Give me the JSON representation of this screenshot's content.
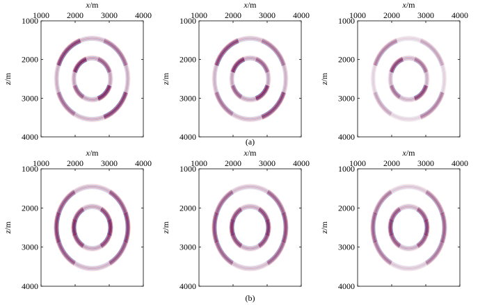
{
  "figure": {
    "row_labels": [
      "(a)",
      "(b)"
    ],
    "x_axis_label": {
      "italic": "x",
      "unit": "/m"
    },
    "z_axis_label": {
      "italic": "z",
      "unit": "/m"
    },
    "x_ticks": [
      "1000",
      "2000",
      "3000",
      "4000"
    ],
    "z_ticks": [
      "1000",
      "2000",
      "3000",
      "4000"
    ]
  },
  "chart_data": {
    "type": "heatmap",
    "description_units": "m",
    "xlim": [
      1000,
      4000
    ],
    "zlim": [
      1000,
      4000
    ],
    "source_center": [
      2500,
      2500
    ],
    "colors": {
      "positive": "#d0263a",
      "negative": "#2c3e9e",
      "zero": "#ffffff"
    },
    "panels": [
      {
        "row": "a",
        "col": 1,
        "outer_radius": 1050,
        "inner_radius": 540,
        "inner_peak": "upper-left/lower-right",
        "inner_strength": 1.0,
        "outer_strength": 0.85
      },
      {
        "row": "a",
        "col": 2,
        "outer_radius": 1050,
        "inner_radius": 540,
        "inner_peak": "upper-left/lower-right",
        "inner_strength": 0.95,
        "outer_strength": 0.8
      },
      {
        "row": "a",
        "col": 3,
        "outer_radius": 1050,
        "inner_radius": 540,
        "inner_peak": "upper-left/lower-right",
        "inner_strength": 0.8,
        "outer_strength": 0.45
      },
      {
        "row": "b",
        "col": 1,
        "outer_radius": 1050,
        "inner_radius": 540,
        "inner_peak": "left/right",
        "inner_strength": 1.0,
        "outer_strength": 0.85
      },
      {
        "row": "b",
        "col": 2,
        "outer_radius": 1050,
        "inner_radius": 540,
        "inner_peak": "left/right",
        "inner_strength": 0.95,
        "outer_strength": 0.75
      },
      {
        "row": "b",
        "col": 3,
        "outer_radius": 1050,
        "inner_radius": 540,
        "inner_peak": "left/right",
        "inner_strength": 0.85,
        "outer_strength": 0.6
      }
    ]
  }
}
